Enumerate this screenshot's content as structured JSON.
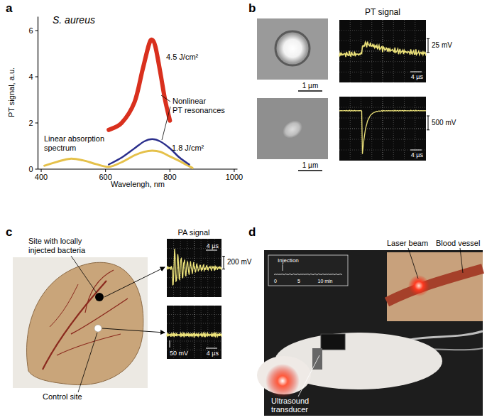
{
  "chart_data": {
    "type": "line",
    "x_label": "Wavelengh, nm",
    "y_label": "PT signal, a.u.",
    "xlim": [
      390,
      1010
    ],
    "xticks": [
      400,
      600,
      800,
      1000
    ],
    "ylim": [
      0,
      6.6
    ],
    "yticks": [
      0,
      2,
      4,
      6
    ],
    "series": [
      {
        "name": "Linear absorption spectrum",
        "color": "#e5c14a",
        "x": [
          410,
          450,
          490,
          530,
          570,
          610,
          650,
          690,
          720,
          745,
          770,
          800,
          830,
          870
        ],
        "values": [
          0.15,
          0.32,
          0.45,
          0.38,
          0.22,
          0.1,
          0.3,
          0.6,
          0.75,
          0.8,
          0.75,
          0.55,
          0.35,
          0.05
        ]
      },
      {
        "name": "1.8 J/cm²",
        "color": "#2b2f8c",
        "x": [
          610,
          650,
          690,
          720,
          745,
          770,
          800,
          830,
          860
        ],
        "values": [
          0.2,
          0.5,
          0.9,
          1.2,
          1.3,
          1.2,
          0.9,
          0.5,
          0.2
        ]
      },
      {
        "name": "4.5 J/cm²",
        "color": "#d9301e",
        "x": [
          610,
          650,
          690,
          715,
          735,
          745,
          755,
          770,
          785,
          800
        ],
        "values": [
          1.7,
          2.0,
          2.9,
          4.3,
          5.4,
          5.6,
          5.3,
          4.2,
          3.0,
          2.1
        ]
      }
    ],
    "annotations": [
      {
        "text": "S. aureus"
      },
      {
        "lines": [
          "Nonlinear",
          "PT resonances"
        ]
      }
    ]
  },
  "panel_labels": [
    "a",
    "b",
    "c",
    "d"
  ],
  "panel_b": {
    "heading": "PT signal",
    "images": [
      {
        "scale_bar": "1 µm",
        "trace": {
          "amplitude": "25 mV",
          "time": "4 µs"
        }
      },
      {
        "scale_bar": "1 µm",
        "trace": {
          "amplitude": "500 mV",
          "time": "4 µs"
        }
      }
    ]
  },
  "panel_c": {
    "heading": "PA signal",
    "site_label": [
      "Site with locally",
      "injected bacteria"
    ],
    "control_label": "Control site",
    "traces": [
      {
        "amplitude": "200 mV",
        "time": "4 µs"
      },
      {
        "amplitude": "50 mV",
        "time": "4 µs"
      }
    ]
  },
  "panel_d": {
    "laser_label": "Laser beam",
    "vessel_label": "Blood vessel",
    "transducer_label": [
      "Ultrasound",
      "transducer"
    ],
    "inset_label": "Injection",
    "inset_ticks": [
      "0",
      "5",
      "10 min"
    ]
  }
}
